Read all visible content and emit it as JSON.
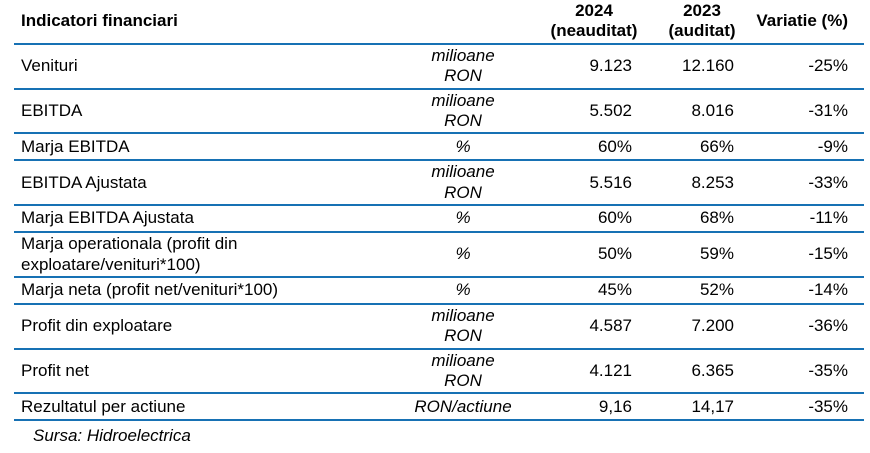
{
  "colors": {
    "rule_blue": "#1771B4",
    "text_black": "#000000"
  },
  "table": {
    "header": {
      "indicator_label": "Indicatori financiari",
      "col_2024": "2024\n(neauditat)",
      "col_2023": "2023\n(auditat)",
      "col_variation": "Variatie (%)"
    },
    "rows": [
      {
        "label": "Venituri",
        "unit": "milioane\nRON",
        "y2024": "9.123",
        "y2023": "12.160",
        "variation": "-25%"
      },
      {
        "label": "EBITDA",
        "unit": "milioane\nRON",
        "y2024": "5.502",
        "y2023": "8.016",
        "variation": "-31%"
      },
      {
        "label": "Marja EBITDA",
        "unit": "%",
        "y2024": "60%",
        "y2023": "66%",
        "variation": "-9%"
      },
      {
        "label": "EBITDA Ajustata",
        "unit": "milioane\nRON",
        "y2024": "5.516",
        "y2023": "8.253",
        "variation": "-33%"
      },
      {
        "label": "Marja EBITDA Ajustata",
        "unit": "%",
        "y2024": "60%",
        "y2023": "68%",
        "variation": "-11%"
      },
      {
        "label": "Marja operationala (profit din exploatare/venituri*100)",
        "unit": "%",
        "y2024": "50%",
        "y2023": "59%",
        "variation": "-15%"
      },
      {
        "label": "Marja neta (profit net/venituri*100)",
        "unit": "%",
        "y2024": "45%",
        "y2023": "52%",
        "variation": "-14%"
      },
      {
        "label": "Profit din exploatare",
        "unit": "milioane\nRON",
        "y2024": "4.587",
        "y2023": "7.200",
        "variation": "-36%"
      },
      {
        "label": "Profit net",
        "unit": "milioane\nRON",
        "y2024": "4.121",
        "y2023": "6.365",
        "variation": "-35%"
      },
      {
        "label": "Rezultatul per actiune",
        "unit": "RON/actiune",
        "y2024": "9,16",
        "y2023": "14,17",
        "variation": "-35%"
      }
    ],
    "footer_source": "Sursa: Hidroelectrica"
  }
}
